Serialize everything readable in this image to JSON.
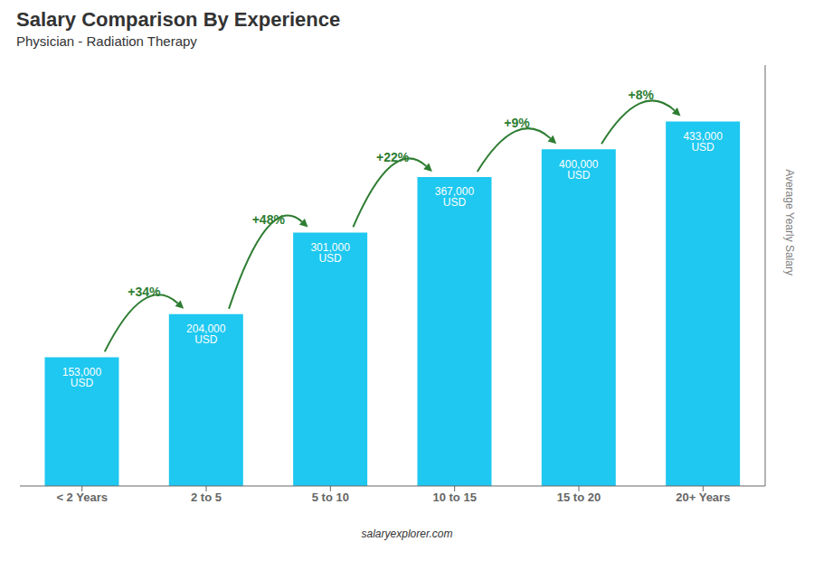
{
  "chart_data": {
    "type": "bar",
    "title": "Salary Comparison By Experience",
    "subtitle": "Physician - Radiation Therapy",
    "categories": [
      "< 2 Years",
      "2 to 5",
      "5 to 10",
      "10 to 15",
      "15 to 20",
      "20+ Years"
    ],
    "values": [
      153000,
      204000,
      301000,
      367000,
      400000,
      433000
    ],
    "value_labels": [
      "153,000 USD",
      "204,000 USD",
      "301,000 USD",
      "367,000 USD",
      "400,000 USD",
      "433,000 USD"
    ],
    "data_labels": true,
    "annotations": [
      "+34%",
      "+48%",
      "+22%",
      "+9%",
      "+8%"
    ],
    "color": "#1EC8F0",
    "ylabel": "Average Yearly Salary",
    "footer": "salaryexplorer.com",
    "ylim": [
      0,
      500000
    ],
    "tick_labels": "x",
    "grid": false
  }
}
